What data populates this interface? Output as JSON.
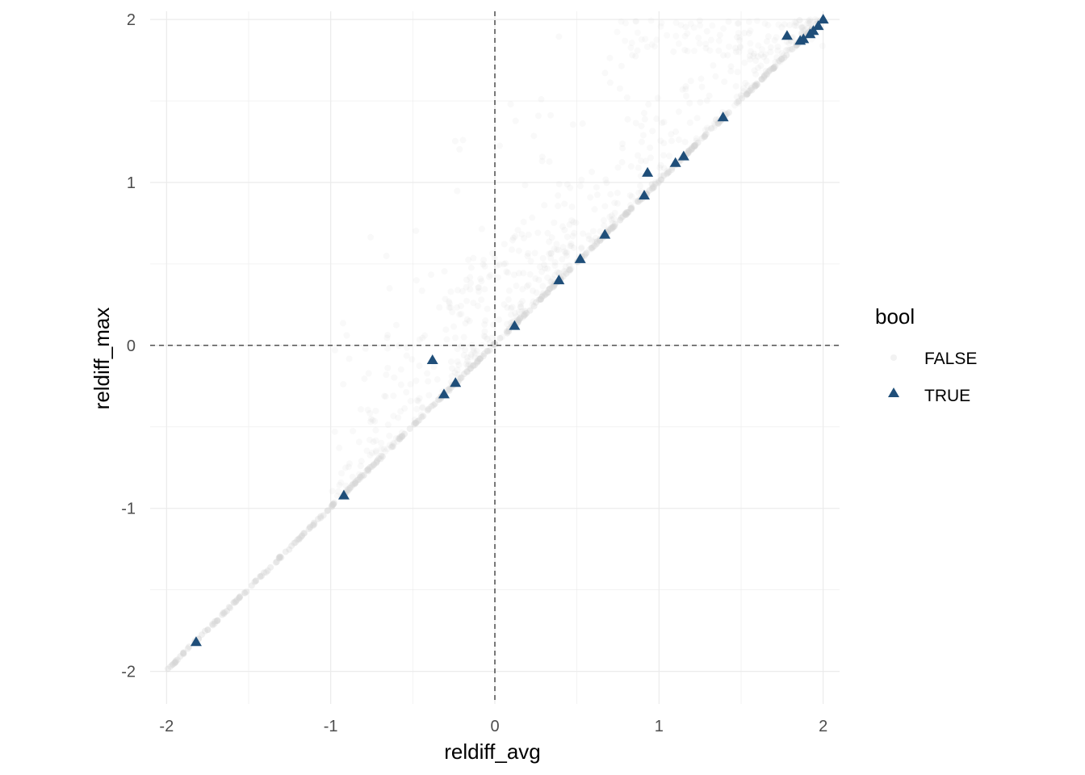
{
  "chart_data": {
    "type": "scatter",
    "xlabel": "reldiff_avg",
    "ylabel": "reldiff_max",
    "xlim": [
      -2.1,
      2.1
    ],
    "ylim": [
      -2.2,
      2.05
    ],
    "x_ticks": [
      -2,
      -1,
      0,
      1,
      2
    ],
    "y_ticks": [
      -2,
      -1,
      0,
      1,
      2
    ],
    "x_tick_labels": [
      "-2",
      "-1",
      "0",
      "1",
      "2"
    ],
    "y_tick_labels": [
      "-2",
      "-1",
      "0",
      "1",
      "2"
    ],
    "grid": true,
    "reference_lines": [
      {
        "orientation": "vertical",
        "value": 0,
        "style": "dashed"
      },
      {
        "orientation": "horizontal",
        "value": 0,
        "style": "dashed"
      }
    ],
    "legend": {
      "title": "bool",
      "placement": "right",
      "entries": [
        {
          "label": "FALSE",
          "shape": "circle",
          "color": "#d9d9d9"
        },
        {
          "label": "TRUE",
          "shape": "triangle",
          "color": "#1f4e79"
        }
      ]
    },
    "series": [
      {
        "name": "FALSE",
        "shape": "circle",
        "color": "#d9d9d9",
        "opacity": 0.2,
        "description_density": [
          {
            "region": "diagonal y=x",
            "x_range": [
              -2,
              2
            ]
          },
          {
            "region": "above diagonal cloud",
            "x_range": [
              -1,
              2
            ],
            "y_range": [
              -1,
              2
            ]
          }
        ],
        "points": []
      },
      {
        "name": "TRUE",
        "shape": "triangle",
        "color": "#1f4e79",
        "points": [
          {
            "x": -1.82,
            "y": -1.82
          },
          {
            "x": -0.92,
            "y": -0.92
          },
          {
            "x": -0.38,
            "y": -0.09
          },
          {
            "x": -0.31,
            "y": -0.3
          },
          {
            "x": -0.24,
            "y": -0.23
          },
          {
            "x": 0.12,
            "y": 0.12
          },
          {
            "x": 0.39,
            "y": 0.4
          },
          {
            "x": 0.52,
            "y": 0.53
          },
          {
            "x": 0.67,
            "y": 0.68
          },
          {
            "x": 0.91,
            "y": 0.92
          },
          {
            "x": 0.93,
            "y": 1.06
          },
          {
            "x": 1.1,
            "y": 1.12
          },
          {
            "x": 1.15,
            "y": 1.16
          },
          {
            "x": 1.39,
            "y": 1.4
          },
          {
            "x": 1.78,
            "y": 1.9
          },
          {
            "x": 1.86,
            "y": 1.87
          },
          {
            "x": 1.88,
            "y": 1.88
          },
          {
            "x": 1.92,
            "y": 1.91
          },
          {
            "x": 1.94,
            "y": 1.93
          },
          {
            "x": 1.97,
            "y": 1.96
          },
          {
            "x": 2.0,
            "y": 2.0
          }
        ]
      }
    ]
  }
}
